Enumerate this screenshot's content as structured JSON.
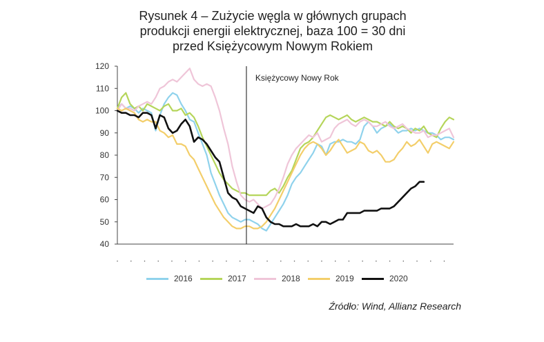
{
  "chart_data": {
    "type": "line",
    "title_lines": [
      "Rysunek 4 – Zużycie węgla w głównych grupach",
      "produkcji energii elektrycznej, baza 100 = 30 dni",
      "przed Księżycowym Nowym Rokiem"
    ],
    "xlabel": "",
    "ylabel": "",
    "ylim": [
      40,
      120
    ],
    "yticks": [
      "40",
      "50",
      "60",
      "70",
      "80",
      "90",
      "100",
      "110",
      "120"
    ],
    "annotation": {
      "label": "Księżycowy Nowy Rok",
      "x": 30
    },
    "grid": false,
    "legend": "bottom",
    "source": "Źródło: Wind, Allianz Research",
    "x": [
      0,
      1,
      2,
      3,
      4,
      5,
      6,
      7,
      8,
      9,
      10,
      11,
      12,
      13,
      14,
      15,
      16,
      17,
      18,
      19,
      20,
      21,
      22,
      23,
      24,
      25,
      26,
      27,
      28,
      29,
      30,
      31,
      32,
      33,
      34,
      35,
      36,
      37,
      38,
      39,
      40,
      41,
      42,
      43,
      44,
      45,
      46,
      47,
      48,
      49,
      50,
      51,
      52,
      53,
      54,
      55,
      56,
      57,
      58,
      59,
      60,
      61,
      62,
      63,
      64,
      65,
      66,
      67,
      68,
      69,
      70,
      71,
      72,
      73,
      74,
      75,
      76,
      77,
      78,
      79
    ],
    "series": [
      {
        "name": "2016",
        "color": "#8fd2ec",
        "values": [
          101,
          103,
          101,
          102,
          101,
          99,
          101,
          100,
          99,
          91,
          98,
          103,
          106,
          108,
          107,
          103,
          100,
          96,
          95,
          90,
          85,
          80,
          72,
          67,
          62,
          58,
          54,
          52,
          51,
          50,
          51,
          51,
          50,
          49,
          47,
          46,
          49,
          52,
          55,
          58,
          62,
          67,
          70,
          72,
          75,
          78,
          81,
          85,
          84,
          80,
          85,
          86,
          86,
          87,
          86,
          86,
          85,
          87,
          93,
          95,
          93,
          90,
          92,
          93,
          94,
          92,
          90,
          91,
          91,
          92,
          91,
          92,
          91,
          90,
          90,
          89,
          87,
          88,
          88,
          87
        ]
      },
      {
        "name": "2017",
        "color": "#b5d55a",
        "values": [
          101,
          106,
          108,
          103,
          101,
          102,
          100,
          103,
          102,
          101,
          100,
          102,
          103,
          100,
          100,
          101,
          98,
          99,
          97,
          93,
          88,
          84,
          80,
          76,
          72,
          69,
          67,
          65,
          64,
          63,
          63,
          62,
          62,
          62,
          62,
          62,
          64,
          65,
          63,
          66,
          70,
          73,
          78,
          83,
          85,
          86,
          88,
          91,
          94,
          97,
          98,
          97,
          96,
          97,
          98,
          96,
          95,
          96,
          97,
          96,
          95,
          95,
          94,
          93,
          95,
          93,
          92,
          93,
          92,
          90,
          92,
          91,
          93,
          90,
          89,
          88,
          92,
          95,
          97,
          96
        ]
      },
      {
        "name": "2018",
        "color": "#efc5d8",
        "values": [
          100,
          103,
          101,
          101,
          100,
          102,
          103,
          104,
          103,
          106,
          110,
          111,
          113,
          114,
          113,
          115,
          117,
          119,
          114,
          112,
          111,
          112,
          111,
          106,
          100,
          92,
          85,
          75,
          68,
          62,
          60,
          59,
          60,
          58,
          56,
          57,
          58,
          61,
          65,
          70,
          76,
          80,
          83,
          85,
          87,
          89,
          88,
          90,
          86,
          87,
          88,
          92,
          94,
          95,
          96,
          94,
          93,
          95,
          96,
          95,
          93,
          93,
          94,
          95,
          93,
          92,
          93,
          94,
          92,
          91,
          90,
          90,
          91,
          88,
          89,
          89,
          90,
          91,
          92,
          88
        ]
      },
      {
        "name": "2019",
        "color": "#f3ce6a",
        "values": [
          101,
          100,
          101,
          100,
          99,
          96,
          95,
          96,
          95,
          95,
          91,
          90,
          88,
          89,
          85,
          85,
          84,
          80,
          78,
          74,
          70,
          66,
          62,
          58,
          55,
          52,
          50,
          48,
          47,
          47,
          48,
          48,
          47,
          47,
          48,
          50,
          53,
          56,
          60,
          64,
          68,
          72,
          76,
          80,
          83,
          85,
          86,
          85,
          83,
          80,
          82,
          85,
          87,
          84,
          81,
          82,
          83,
          86,
          85,
          82,
          81,
          82,
          80,
          77,
          77,
          78,
          81,
          83,
          86,
          84,
          85,
          87,
          84,
          81,
          85,
          86,
          85,
          84,
          83,
          86
        ]
      },
      {
        "name": "2020",
        "color": "#111111",
        "values": [
          100,
          99,
          99,
          98,
          98,
          97,
          99,
          99,
          98,
          92,
          98,
          97,
          92,
          90,
          91,
          94,
          96,
          93,
          86,
          88,
          87,
          85,
          82,
          79,
          77,
          70,
          63,
          61,
          60,
          57,
          56,
          55,
          54,
          57,
          56,
          52,
          50,
          49,
          49,
          48,
          48,
          48,
          49,
          48,
          48,
          48,
          49,
          48,
          50,
          50,
          49,
          50,
          51,
          51,
          54,
          54,
          54,
          54,
          55,
          55,
          55,
          55,
          56,
          56,
          56,
          57,
          59,
          61,
          63,
          65,
          66,
          68,
          68,
          null,
          null,
          null,
          null,
          null,
          null,
          null
        ]
      }
    ]
  }
}
